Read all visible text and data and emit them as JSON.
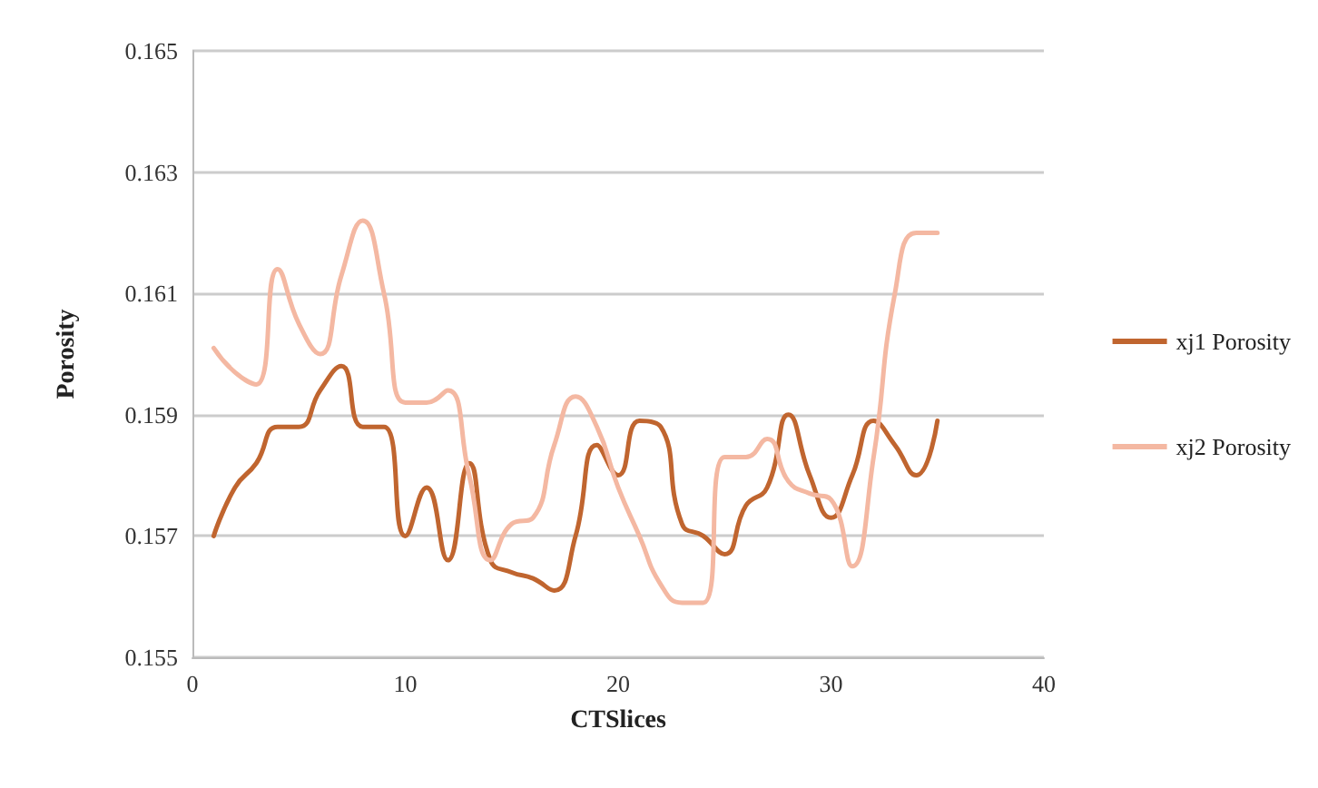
{
  "chart_data": {
    "type": "line",
    "xlabel": "CTSlices",
    "ylabel": "Porosity",
    "x": [
      1,
      2,
      3,
      4,
      5,
      6,
      7,
      8,
      9,
      10,
      11,
      12,
      13,
      14,
      15,
      16,
      17,
      18,
      19,
      20,
      21,
      22,
      23,
      24,
      25,
      26,
      27,
      28,
      29,
      30,
      31,
      32,
      33,
      34,
      35
    ],
    "series": [
      {
        "name": "xj1 Porosity",
        "color": "#c0652f",
        "values": [
          0.157,
          0.1578,
          0.1582,
          0.1588,
          0.1588,
          0.1594,
          0.1598,
          0.1588,
          0.1588,
          0.157,
          0.1578,
          0.1566,
          0.1582,
          0.1566,
          0.1564,
          0.1563,
          0.1561,
          0.157,
          0.1585,
          0.158,
          0.1589,
          0.1588,
          0.1572,
          0.157,
          0.1567,
          0.1575,
          0.1578,
          0.159,
          0.158,
          0.1573,
          0.158,
          0.1589,
          0.1585,
          0.158,
          0.1589
        ]
      },
      {
        "name": "xj2 Porosity",
        "color": "#f4b8a2",
        "values": [
          0.1601,
          0.1597,
          0.1595,
          0.1614,
          0.1605,
          0.16,
          0.1613,
          0.1622,
          0.161,
          0.1592,
          0.1592,
          0.1594,
          0.158,
          0.1566,
          0.1572,
          0.1573,
          0.1585,
          0.1593,
          0.1588,
          0.1578,
          0.157,
          0.1562,
          0.1559,
          0.1559,
          0.1583,
          0.1583,
          0.1586,
          0.1579,
          0.1577,
          0.1576,
          0.1565,
          0.1583,
          0.161,
          0.162,
          0.162
        ]
      }
    ],
    "xlim": [
      0,
      40
    ],
    "xticks": [
      0,
      10,
      20,
      30,
      40
    ],
    "ylim": [
      0.155,
      0.165
    ],
    "yticks": [
      0.155,
      0.157,
      0.159,
      0.161,
      0.163,
      0.165
    ],
    "grid": "y",
    "legend": "right",
    "marker": "none",
    "line_style": "solid"
  }
}
